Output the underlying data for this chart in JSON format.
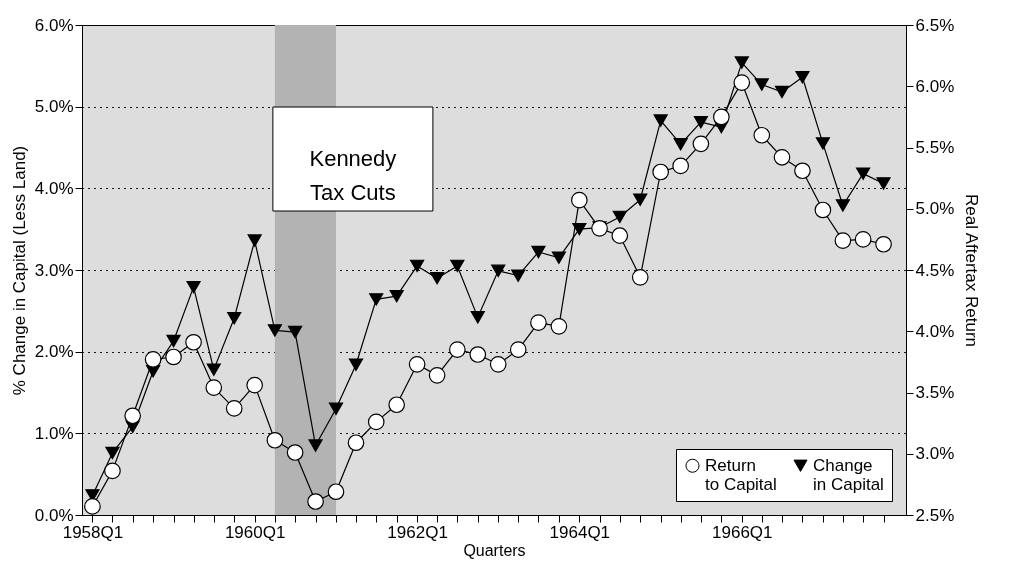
{
  "chart_data": {
    "type": "line",
    "xlabel": "Quarters",
    "ylabel": "% Change in Capital (Less Land)",
    "y2label": "Real Aftertax Return",
    "x": [
      "1958-01",
      "1958-04",
      "1958-07",
      "1958-10",
      "1959-01",
      "1959-04",
      "1959-07",
      "1959-10",
      "1960-01",
      "1960-04",
      "1960-07",
      "1960-10",
      "1961-01",
      "1961-04",
      "1961-07",
      "1961-10",
      "1962-01",
      "1962-04",
      "1962-07",
      "1962-10",
      "1963-01",
      "1963-04",
      "1963-07",
      "1963-10",
      "1964-01",
      "1964-04",
      "1964-07",
      "1964-10",
      "1965-01",
      "1965-04",
      "1965-07",
      "1965-10",
      "1966-01",
      "1966-04",
      "1966-07",
      "1966-10",
      "1967-01",
      "1967-04",
      "1967-07",
      "1967-10"
    ],
    "series": [
      {
        "name": "Return to Capital",
        "color": "#000000",
        "axis": "y2",
        "marker": "circle",
        "values": [
          2.57,
          2.86,
          3.31,
          3.77,
          3.79,
          3.91,
          3.54,
          3.37,
          3.56,
          3.11,
          3.01,
          2.61,
          2.69,
          3.09,
          3.26,
          3.4,
          3.73,
          3.64,
          3.85,
          3.81,
          3.73,
          3.85,
          4.07,
          4.04,
          5.07,
          4.84,
          4.78,
          4.44,
          5.3,
          5.35,
          5.53,
          5.75,
          6.03,
          5.6,
          5.42,
          5.31,
          4.99,
          4.74,
          4.75,
          4.71
        ]
      },
      {
        "name": "Change in Capital",
        "color": "#000000",
        "marker": "triangle",
        "values": [
          0.24,
          0.76,
          1.08,
          1.76,
          2.13,
          2.79,
          1.78,
          2.41,
          3.36,
          2.26,
          2.24,
          0.85,
          1.3,
          1.84,
          2.64,
          2.68,
          3.05,
          2.9,
          3.05,
          2.42,
          2.99,
          2.93,
          3.22,
          3.15,
          3.5,
          3.52,
          3.65,
          3.86,
          4.83,
          4.54,
          4.81,
          4.75,
          5.54,
          5.27,
          5.18,
          5.36,
          4.55,
          3.79,
          4.18,
          4.06
        ]
      }
    ],
    "xlim": [
      "1957-11-15",
      "1968-01-10"
    ],
    "xticks": [
      {
        "value": "1958-01",
        "label": "1958Q1"
      },
      {
        "value": "1958-04",
        "label": null
      },
      {
        "value": "1958-07",
        "label": null
      },
      {
        "value": "1958-10",
        "label": null
      },
      {
        "value": "1959-01",
        "label": null
      },
      {
        "value": "1959-04",
        "label": null
      },
      {
        "value": "1959-07",
        "label": null
      },
      {
        "value": "1959-10",
        "label": null
      },
      {
        "value": "1960-01",
        "label": "1960Q1"
      },
      {
        "value": "1960-04",
        "label": null
      },
      {
        "value": "1960-07",
        "label": null
      },
      {
        "value": "1960-10",
        "label": null
      },
      {
        "value": "1961-01",
        "label": null
      },
      {
        "value": "1961-04",
        "label": null
      },
      {
        "value": "1961-07",
        "label": null
      },
      {
        "value": "1961-10",
        "label": null
      },
      {
        "value": "1962-01",
        "label": "1962Q1"
      },
      {
        "value": "1962-04",
        "label": null
      },
      {
        "value": "1962-07",
        "label": null
      },
      {
        "value": "1962-10",
        "label": null
      },
      {
        "value": "1963-01",
        "label": null
      },
      {
        "value": "1963-04",
        "label": null
      },
      {
        "value": "1963-07",
        "label": null
      },
      {
        "value": "1963-10",
        "label": null
      },
      {
        "value": "1964-01",
        "label": "1964Q1"
      },
      {
        "value": "1964-04",
        "label": null
      },
      {
        "value": "1964-07",
        "label": null
      },
      {
        "value": "1964-10",
        "label": null
      },
      {
        "value": "1965-01",
        "label": null
      },
      {
        "value": "1965-04",
        "label": null
      },
      {
        "value": "1965-07",
        "label": null
      },
      {
        "value": "1965-10",
        "label": null
      },
      {
        "value": "1966-01",
        "label": "1966Q1"
      },
      {
        "value": "1966-04",
        "label": null
      },
      {
        "value": "1966-07",
        "label": null
      },
      {
        "value": "1966-10",
        "label": null
      },
      {
        "value": "1967-01",
        "label": null
      },
      {
        "value": "1967-04",
        "label": null
      },
      {
        "value": "1967-07",
        "label": null
      },
      {
        "value": "1967-10",
        "label": null
      }
    ],
    "ylim": [
      0,
      6
    ],
    "yticks": [
      {
        "value": 0,
        "label": "0.0%"
      },
      {
        "value": 1,
        "label": "1.0%"
      },
      {
        "value": 2,
        "label": "2.0%"
      },
      {
        "value": 3,
        "label": "3.0%"
      },
      {
        "value": 4,
        "label": "4.0%"
      },
      {
        "value": 5,
        "label": "5.0%"
      },
      {
        "value": 6,
        "label": "6.0%"
      }
    ],
    "y2lim": [
      2.5,
      6.5
    ],
    "y2ticks": [
      {
        "value": 2.5,
        "label": "2.5%"
      },
      {
        "value": 3,
        "label": "3.0%"
      },
      {
        "value": 3.5,
        "label": "3.5%"
      },
      {
        "value": 4,
        "label": "4.0%"
      },
      {
        "value": 4.5,
        "label": "4.5%"
      },
      {
        "value": 5,
        "label": "5.0%"
      },
      {
        "value": 5.5,
        "label": "5.5%"
      },
      {
        "value": 6,
        "label": "6.0%"
      },
      {
        "value": 6.5,
        "label": "6.5%"
      }
    ],
    "bands": [
      {
        "axis": "x",
        "from": "1960-04",
        "to": "1961-01",
        "label": "Kennedy\nTax Cuts",
        "color": "#b3b3b3"
      }
    ],
    "grid": "y",
    "legend": "bottom right"
  }
}
